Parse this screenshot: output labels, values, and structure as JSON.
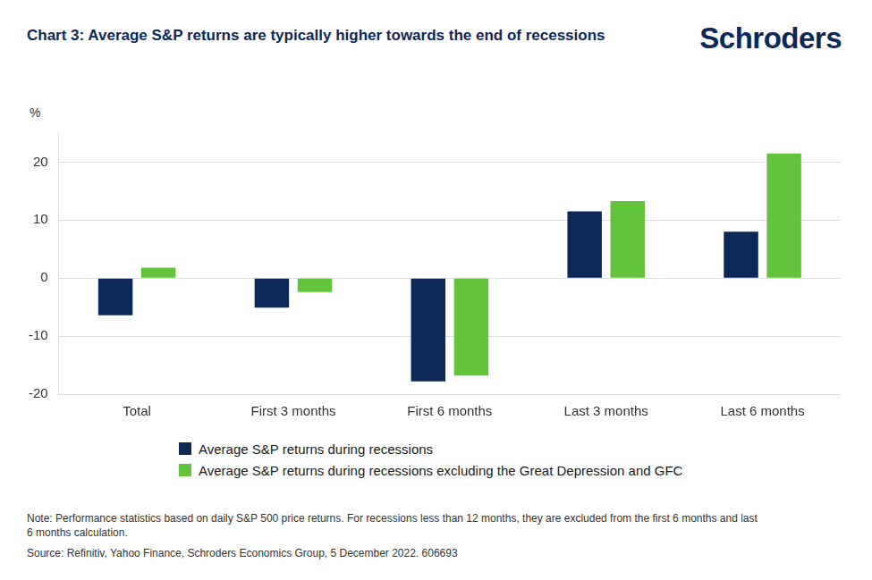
{
  "chart_data": {
    "type": "bar",
    "title": "Chart 3: Average S&P returns are typically higher towards the end of recessions",
    "logo": "Schroders",
    "y_label": "%",
    "categories": [
      "Total",
      "First 3 months",
      "First 6 months",
      "Last 3 months",
      "Last 6 months"
    ],
    "series": [
      {
        "name": "Average S&P returns during recessions",
        "color": "#0c2858",
        "values": [
          -6.4,
          -5.1,
          -17.8,
          11.5,
          8.0
        ]
      },
      {
        "name": "Average S&P returns during recessions excluding the Great Depression and GFC",
        "color": "#62c43a",
        "values": [
          1.8,
          -2.4,
          -16.8,
          13.3,
          21.5
        ]
      }
    ],
    "ylim": [
      -20,
      25
    ],
    "yticks": [
      -20,
      -10,
      0,
      10,
      20
    ],
    "grid": true,
    "legend": "bottom",
    "note": "Note: Performance statistics based on daily S&P 500 price returns. For recessions less than 12 months, they are excluded from the first 6 months and last 6 months calculation.",
    "source": "Source: Refinitiv, Yahoo Finance, Schroders Economics Group, 5 December 2022. 606693"
  }
}
